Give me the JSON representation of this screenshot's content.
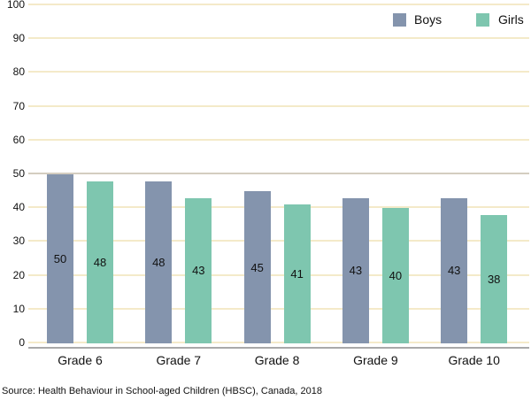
{
  "chart_data": {
    "type": "bar",
    "title": "",
    "xlabel": "",
    "ylabel": "",
    "categories": [
      "Grade 6",
      "Grade 7",
      "Grade 8",
      "Grade 9",
      "Grade 10"
    ],
    "series": [
      {
        "name": "Boys",
        "color": "#8494ad",
        "values": [
          50,
          48,
          45,
          43,
          43
        ]
      },
      {
        "name": "Girls",
        "color": "#7ec6af",
        "values": [
          48,
          43,
          41,
          40,
          38
        ]
      }
    ],
    "ylim": [
      0,
      100
    ],
    "yticks": [
      0,
      10,
      20,
      30,
      40,
      50,
      60,
      70,
      80,
      90,
      100
    ],
    "grid": true,
    "legend_position": "top-right",
    "data_labels": "centered-in-bar",
    "source": "Source: Health Behaviour in School-aged Children (HBSC), Canada, 2018"
  },
  "colors": {
    "background": "#ffffff",
    "gridline": "#f4eac9",
    "gridline_mid": "#d4cdc0",
    "axis_line": "#a9a9a9",
    "text": "#111111"
  }
}
